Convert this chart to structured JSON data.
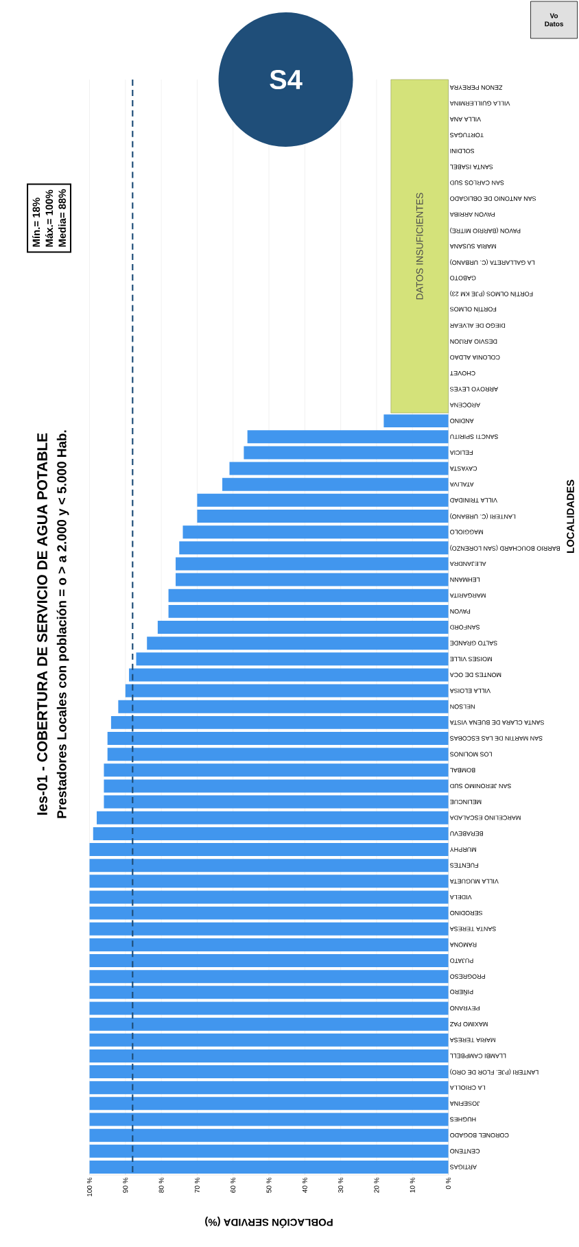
{
  "chart_data": {
    "type": "bar",
    "orientation": "horizontal",
    "title": "Ies-01 - COBERTURA DE SERVICIO DE AGUA POTABLE",
    "subtitle": "Prestadores Locales con población = o > a 2.000  y < 5.000 Hab.",
    "xlabel": "POBLACIÓN SERVIDA (%)",
    "ylabel": "LOCALIDADES",
    "categories": [
      "ZENON PEREYRA",
      "VILLA GUILLERMINA",
      "VILLA ANA",
      "TORTUGAS",
      "SOLDINI",
      "SANTA ISABEL",
      "SAN CARLOS SUD",
      "SAN ANTONIO DE OBLIGADO",
      "PAVON ARRIBA",
      "PAVON (BARRIO MITRE)",
      "MARIA SUSANA",
      "LA GALLARETA (C. URBANO)",
      "GABOTO",
      "FORTÍN OLMOS (PJE KM 23)",
      "FORTÍN OLMOS",
      "DIEGO DE ALVEAR",
      "DESVIO ARIJON",
      "COLONIA ALDAO",
      "CHOVET",
      "ARROYO LEYES",
      "AROCENA",
      "ANDINO",
      "SANCTI SPIRITU",
      "FELICIA",
      "CAYASTA",
      "ATALIVA",
      "VILLA TRINIDAD",
      "LANTERI (C. URBANO)",
      "MAGGIOLO",
      "BARRIO BOUCHARD (SAN LORENZO)",
      "ALEJANDRA",
      "LEHMANN",
      "MARGARITA",
      "PAVON",
      "SANFORD",
      "SALTO GRANDE",
      "MOISES VILLE",
      "MONTES DE OCA",
      "VILLA ELOISA",
      "NELSON",
      "SANTA CLARA DE BUENA VISTA",
      "SAN MARTIN DE LAS ESCOBAS",
      "LOS MOLINOS",
      "BOMBAL",
      "SAN JERONIMO SUD",
      "MELINCUE",
      "MARCELINO ESCALADA",
      "BERABEVU",
      "MURPHY",
      "FUENTES",
      "VILLA MUGUETA",
      "VIDELA",
      "SERODINO",
      "SANTA TERESA",
      "RAMONA",
      "PUJATO",
      "PROGRESO",
      "PIÑERO",
      "PEYRANO",
      "MAXIMO PAZ",
      "MARIA TERESA",
      "LLAMBI CAMPBELL",
      "LANTERI (PJE. FLOR DE ORO)",
      "LA CRIOLLA",
      "JOSEFINA",
      "HUGHES",
      "CORONEL BOGADO",
      "CENTENO",
      "ARTIGAS"
    ],
    "values": [
      null,
      null,
      null,
      null,
      null,
      null,
      null,
      null,
      null,
      null,
      null,
      null,
      null,
      null,
      null,
      null,
      null,
      null,
      null,
      null,
      null,
      18,
      56,
      57,
      61,
      63,
      70,
      70,
      74,
      75,
      76,
      76,
      78,
      78,
      81,
      84,
      87,
      89,
      90,
      92,
      94,
      95,
      95,
      96,
      96,
      96,
      98,
      99,
      100,
      100,
      100,
      100,
      100,
      100,
      100,
      100,
      100,
      100,
      100,
      100,
      100,
      100,
      100,
      100,
      100,
      100,
      100,
      100,
      100
    ],
    "color": "#4196ee",
    "xlim": [
      100,
      0
    ],
    "xticks": [
      {
        "value": 0,
        "label": "0 %"
      },
      {
        "value": 10,
        "label": "10 %"
      },
      {
        "value": 20,
        "label": "20 %"
      },
      {
        "value": 30,
        "label": "30 %"
      },
      {
        "value": 40,
        "label": "40 %"
      },
      {
        "value": 50,
        "label": "50 %"
      },
      {
        "value": 60,
        "label": "60 %"
      },
      {
        "value": 70,
        "label": "70 %"
      },
      {
        "value": 80,
        "label": "80 %"
      },
      {
        "value": 90,
        "label": "90 %"
      },
      {
        "value": 100,
        "label": "100 %"
      }
    ],
    "grid": "x",
    "ref_lines": [
      {
        "axis": "x",
        "value": 88,
        "color": "#1f4e79",
        "line_style": "dashed"
      }
    ],
    "annotations": [
      "Mín.=   18%",
      "Máx.=  100%",
      "Media=  88%",
      "S4",
      "Vo",
      "Datos",
      "DATOS INSUFICIENTES"
    ]
  }
}
